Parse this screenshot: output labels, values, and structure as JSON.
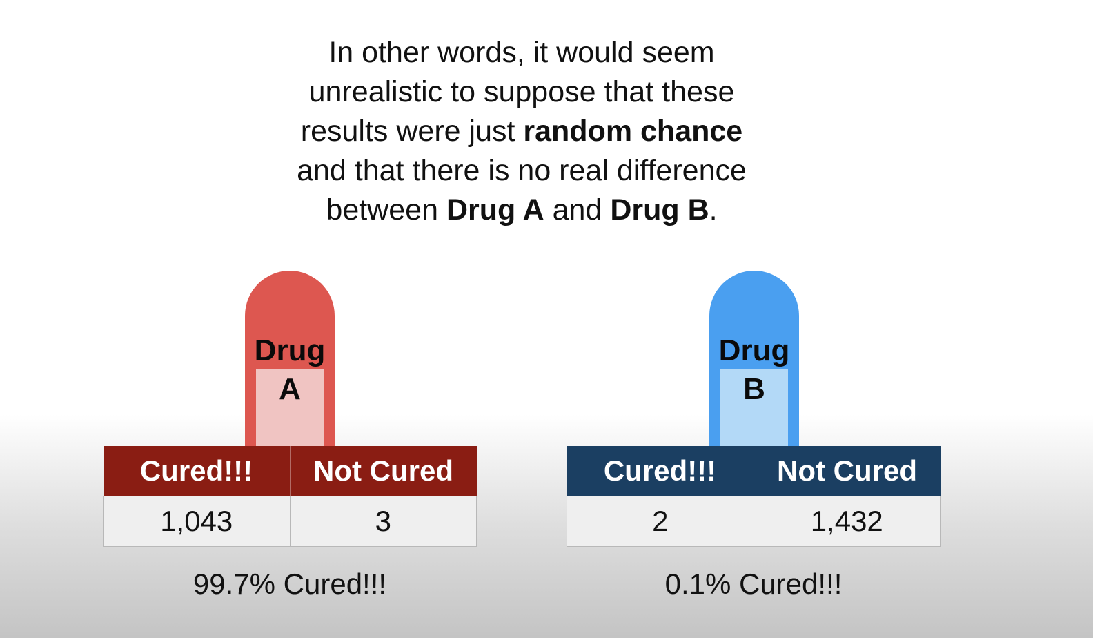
{
  "caption": {
    "part1": "In other words, it would seem unrealistic to suppose that these results were just ",
    "bold1": "random chance",
    "part2": " and that there is no real difference between ",
    "bold2": "Drug A",
    "part3": " and ",
    "bold3": "Drug B",
    "part4": "."
  },
  "drug_a": {
    "pill_line1": "Drug",
    "pill_line2": "A",
    "pill_color": "#dd5750",
    "header_color": "#8a1d13",
    "col_cured": "Cured!!!",
    "col_not_cured": "Not Cured",
    "cured": "1,043",
    "not_cured": "3",
    "percent_text": "99.7% Cured!!!"
  },
  "drug_b": {
    "pill_line1": "Drug",
    "pill_line2": "B",
    "pill_color": "#4a9ff0",
    "header_color": "#1b3f62",
    "col_cured": "Cured!!!",
    "col_not_cured": "Not Cured",
    "cured": "2",
    "not_cured": "1,432",
    "percent_text": "0.1% Cured!!!"
  }
}
